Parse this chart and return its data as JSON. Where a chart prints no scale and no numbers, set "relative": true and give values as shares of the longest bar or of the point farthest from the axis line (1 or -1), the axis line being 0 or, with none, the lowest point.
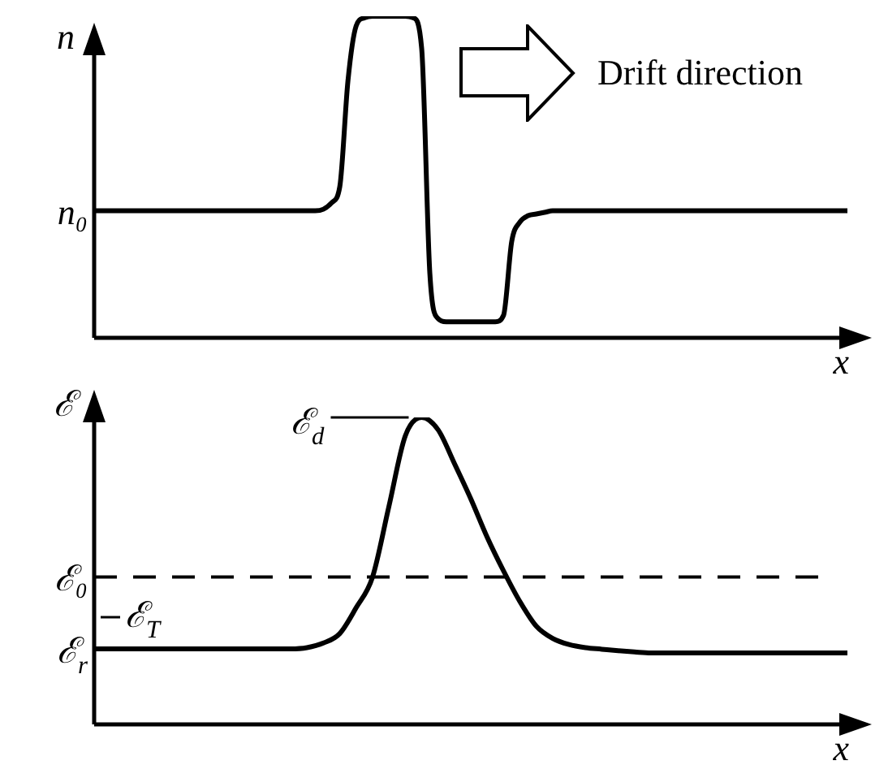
{
  "chart_data": [
    {
      "type": "line",
      "ylabel": "n",
      "xlabel": "x",
      "relative": true,
      "marker": "none",
      "categories": [
        null,
        null,
        null,
        null,
        null,
        null,
        null,
        null,
        null,
        null,
        null,
        null,
        null,
        null,
        null,
        null,
        null,
        null,
        null,
        null,
        null,
        null,
        null,
        null,
        null,
        null,
        null,
        null,
        null,
        null,
        null,
        null,
        null,
        null,
        null,
        null,
        null,
        null,
        null,
        null,
        null,
        null,
        null,
        null,
        null,
        null,
        null,
        null,
        null,
        null,
        null,
        null,
        null,
        null,
        null,
        null,
        null,
        null,
        null,
        null,
        null,
        null,
        null,
        null,
        null,
        null,
        null,
        null,
        null,
        null,
        null,
        null,
        null,
        null,
        null,
        null,
        null,
        null,
        null,
        null,
        null,
        null,
        null,
        null,
        null,
        null,
        null,
        null,
        null,
        null,
        null,
        null,
        null
      ],
      "series": [
        {
          "color": "#000000",
          "values": [
            0.395,
            0.395,
            0.395,
            0.395,
            0.395,
            0.395,
            0.395,
            0.395,
            0.395,
            0.395,
            0.395,
            0.395,
            0.395,
            0.395,
            0.395,
            0.395,
            0.395,
            0.395,
            0.395,
            0.395,
            0.395,
            0.395,
            0.395,
            0.395,
            0.395,
            0.395,
            0.395,
            0.395,
            0.4,
            0.42,
            0.47,
            0.8,
            0.97,
            0.995,
            1,
            1,
            1,
            1,
            1,
            0.995,
            0.9,
            0.2,
            0.06,
            0.05,
            0.05,
            0.05,
            0.05,
            0.05,
            0.05,
            0.05,
            0.07,
            0.3,
            0.36,
            0.38,
            0.385,
            0.39,
            0.395,
            0.395,
            0.395,
            0.395,
            0.395,
            0.395,
            0.395,
            0.395,
            0.395,
            0.395,
            0.395,
            0.395,
            0.395,
            0.395,
            0.395,
            0.395,
            0.395,
            0.395,
            0.395,
            0.395,
            0.395,
            0.395,
            0.395,
            0.395,
            0.395,
            0.395,
            0.395,
            0.395,
            0.395,
            0.395,
            0.395,
            0.395,
            0.395,
            0.395,
            0.395,
            0.395,
            0.395
          ]
        }
      ],
      "annotations": [
        "n₀",
        "Drift direction"
      ]
    },
    {
      "type": "line",
      "ylabel": "ℰ",
      "xlabel": "x",
      "relative": true,
      "marker": "none",
      "categories": [
        null,
        null,
        null,
        null,
        null,
        null,
        null,
        null,
        null,
        null,
        null,
        null,
        null,
        null,
        null,
        null,
        null,
        null,
        null,
        null,
        null,
        null,
        null,
        null,
        null,
        null,
        null,
        null,
        null,
        null,
        null,
        null,
        null,
        null,
        null,
        null,
        null,
        null,
        null,
        null,
        null,
        null,
        null,
        null,
        null,
        null,
        null
      ],
      "series": [
        {
          "color": "#000000",
          "values": [
            0.246,
            0.246,
            0.246,
            0.246,
            0.246,
            0.246,
            0.246,
            0.246,
            0.246,
            0.246,
            0.246,
            0.246,
            0.246,
            0.25,
            0.265,
            0.296,
            0.38,
            0.48,
            0.71,
            0.94,
            1,
            0.96,
            0.85,
            0.735,
            0.61,
            0.5,
            0.4,
            0.32,
            0.28,
            0.26,
            0.25,
            0.245,
            0.24,
            0.236,
            0.233,
            0.233,
            0.233,
            0.233,
            0.233,
            0.233,
            0.233,
            0.233,
            0.233,
            0.233,
            0.233,
            0.233,
            0.233
          ]
        }
      ],
      "ref_lines": [
        {
          "axis": "y",
          "value": 0.48,
          "label": "ℰ₀",
          "line_style": "dashed",
          "color": "#000000"
        }
      ],
      "annotations": [
        "ℰ$_{d}$",
        "ℰ$_{r}$",
        "ℰ$_{T}$"
      ]
    }
  ]
}
